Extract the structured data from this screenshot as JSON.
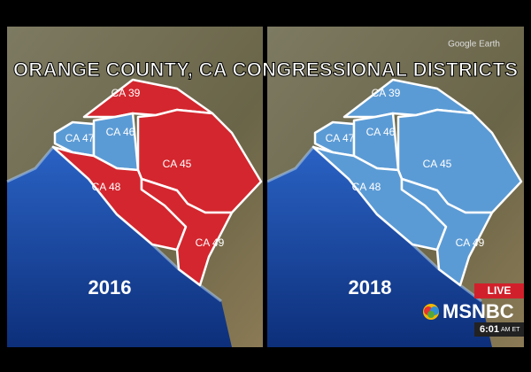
{
  "watermark": "Google Earth",
  "title": "ORANGE COUNTY, CA CONGRESSIONAL DISTRICTS",
  "maps": [
    {
      "year": "2016",
      "districts": [
        {
          "label": "CA 39",
          "color": "#d4262e"
        },
        {
          "label": "CA 47",
          "color": "#5b9bd5"
        },
        {
          "label": "CA 46",
          "color": "#5b9bd5"
        },
        {
          "label": "CA 45",
          "color": "#d4262e"
        },
        {
          "label": "CA 48",
          "color": "#d4262e"
        },
        {
          "label": "CA 49",
          "color": "#d4262e"
        }
      ]
    },
    {
      "year": "2018",
      "districts": [
        {
          "label": "CA 39",
          "color": "#5b9bd5"
        },
        {
          "label": "CA 47",
          "color": "#5b9bd5"
        },
        {
          "label": "CA 46",
          "color": "#5b9bd5"
        },
        {
          "label": "CA 45",
          "color": "#5b9bd5"
        },
        {
          "label": "CA 48",
          "color": "#5b9bd5"
        },
        {
          "label": "CA 49",
          "color": "#5b9bd5"
        }
      ]
    }
  ],
  "broadcast": {
    "live": "LIVE",
    "network": "MSNBC",
    "time": "6:01",
    "zone": "AM ET"
  }
}
